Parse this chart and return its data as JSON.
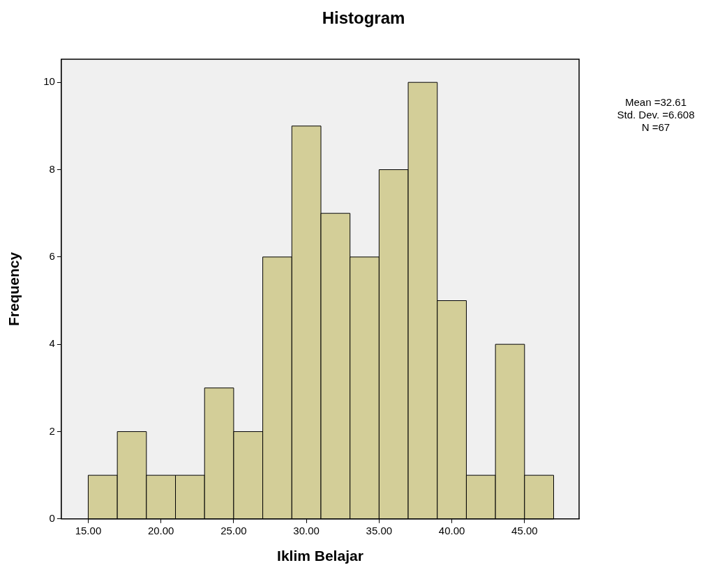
{
  "chart_data": {
    "type": "histogram",
    "title": "Histogram",
    "xlabel": "Iklim Belajar",
    "ylabel": "Frequency",
    "bins": [
      15,
      17,
      19,
      21,
      23,
      25,
      27,
      29,
      31,
      33,
      35,
      37,
      39,
      41,
      43,
      45,
      47
    ],
    "values": [
      1,
      2,
      1,
      1,
      3,
      2,
      6,
      9,
      7,
      6,
      8,
      10,
      5,
      1,
      4,
      1
    ],
    "color": "#d3ce98",
    "xlim": [
      13.15,
      48.75
    ],
    "xticks": [
      {
        "value": 15,
        "label": "15.00"
      },
      {
        "value": 20,
        "label": "20.00"
      },
      {
        "value": 25,
        "label": "25.00"
      },
      {
        "value": 30,
        "label": "30.00"
      },
      {
        "value": 35,
        "label": "35.00"
      },
      {
        "value": 40,
        "label": "40.00"
      },
      {
        "value": 45,
        "label": "45.00"
      }
    ],
    "ylim": [
      0,
      10.53
    ],
    "yticks": [
      0,
      2,
      4,
      6,
      8,
      10
    ],
    "grid": false,
    "legend": false,
    "annotations": [
      "Mean =32.61",
      "Std. Dev. =6.608",
      "N =67"
    ]
  }
}
